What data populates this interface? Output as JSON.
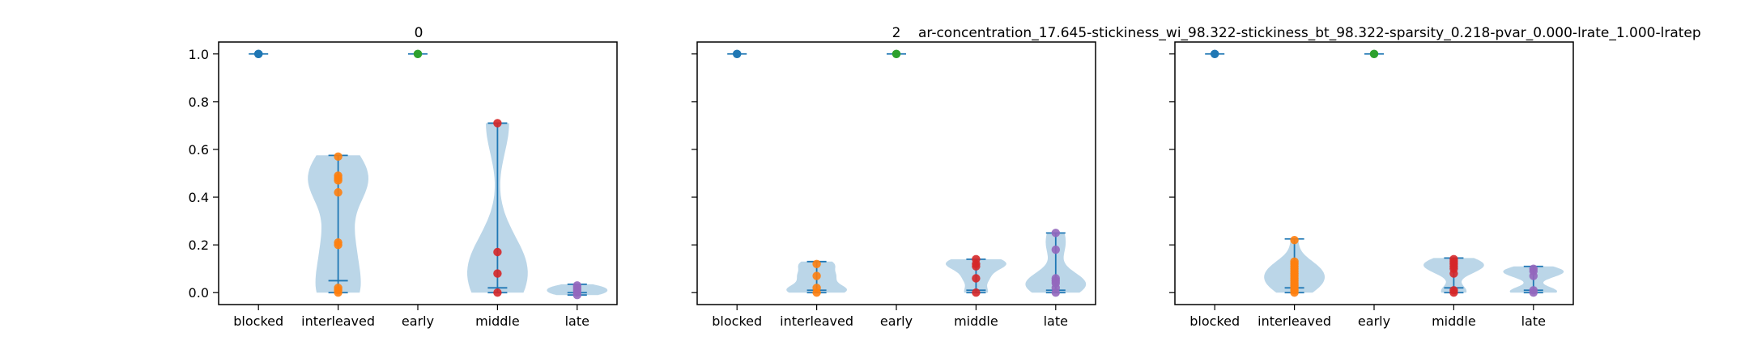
{
  "figure": {
    "title_left": "0",
    "title_center": "2",
    "suptitle": "ar-concentration_17.645-stickiness_wi_98.322-stickiness_bt_98.322-sparsity_0.218-pvar_0.000-lrate_1.000-lratep"
  },
  "colors": {
    "blocked": "#1f77b4",
    "interleaved": "#ff7f0e",
    "early": "#2ca02c",
    "middle": "#d62728",
    "late": "#9467bd",
    "violin_body": "#1f77b4",
    "violin_line": "#1f77b4"
  },
  "chart_data": [
    {
      "type": "violin",
      "title": "0",
      "categories": [
        "blocked",
        "interleaved",
        "early",
        "middle",
        "late"
      ],
      "ylim": [
        -0.05,
        1.05
      ],
      "yticks": [
        "0.0",
        "0.2",
        "0.4",
        "0.6",
        "0.8",
        "1.0"
      ],
      "grid": false,
      "series": [
        {
          "category": "blocked",
          "points": [
            1.0,
            1.0,
            1.0
          ],
          "range": [
            1.0,
            1.0
          ],
          "median": 1.0
        },
        {
          "category": "interleaved",
          "points": [
            0.57,
            0.49,
            0.48,
            0.47,
            0.42,
            0.21,
            0.2,
            0.02,
            0.01,
            0.0
          ],
          "range": [
            0.0,
            0.575
          ],
          "median": 0.05
        },
        {
          "category": "early",
          "points": [
            1.0,
            1.0
          ],
          "range": [
            1.0,
            1.0
          ],
          "median": 1.0
        },
        {
          "category": "middle",
          "points": [
            0.71,
            0.17,
            0.08,
            0.0
          ],
          "range": [
            0.0,
            0.71
          ],
          "median": 0.02
        },
        {
          "category": "late",
          "points": [
            0.03,
            0.02,
            0.01,
            0.0,
            -0.01
          ],
          "range": [
            -0.01,
            0.035
          ],
          "median": 0.0
        }
      ]
    },
    {
      "type": "violin",
      "title": "2",
      "categories": [
        "blocked",
        "interleaved",
        "early",
        "middle",
        "late"
      ],
      "ylim": [
        -0.05,
        1.05
      ],
      "yticks": [
        "0.0",
        "0.2",
        "0.4",
        "0.6",
        "0.8",
        "1.0"
      ],
      "grid": false,
      "series": [
        {
          "category": "blocked",
          "points": [
            1.0,
            1.0
          ],
          "range": [
            1.0,
            1.0
          ],
          "median": 1.0
        },
        {
          "category": "interleaved",
          "points": [
            0.12,
            0.07,
            0.02,
            0.0
          ],
          "range": [
            0.0,
            0.13
          ],
          "median": 0.01
        },
        {
          "category": "early",
          "points": [
            1.0,
            1.0
          ],
          "range": [
            1.0,
            1.0
          ],
          "median": 1.0
        },
        {
          "category": "middle",
          "points": [
            0.14,
            0.12,
            0.11,
            0.06,
            0.0
          ],
          "range": [
            0.0,
            0.14
          ],
          "median": 0.01
        },
        {
          "category": "late",
          "points": [
            0.25,
            0.18,
            0.06,
            0.05,
            0.04,
            0.02,
            0.0
          ],
          "range": [
            0.0,
            0.25
          ],
          "median": 0.01
        }
      ]
    },
    {
      "type": "violin",
      "title": "",
      "categories": [
        "blocked",
        "interleaved",
        "early",
        "middle",
        "late"
      ],
      "ylim": [
        -0.05,
        1.05
      ],
      "yticks": [
        "0.0",
        "0.2",
        "0.4",
        "0.6",
        "0.8",
        "1.0"
      ],
      "grid": false,
      "series": [
        {
          "category": "blocked",
          "points": [
            1.0,
            1.0
          ],
          "range": [
            1.0,
            1.0
          ],
          "median": 1.0
        },
        {
          "category": "interleaved",
          "points": [
            0.22,
            0.13,
            0.12,
            0.11,
            0.1,
            0.09,
            0.08,
            0.07,
            0.06,
            0.05,
            0.04,
            0.03,
            0.02,
            0.01,
            0.0
          ],
          "range": [
            0.0,
            0.225
          ],
          "median": 0.02
        },
        {
          "category": "early",
          "points": [
            1.0,
            1.0
          ],
          "range": [
            1.0,
            1.0
          ],
          "median": 1.0
        },
        {
          "category": "middle",
          "points": [
            0.14,
            0.13,
            0.12,
            0.11,
            0.1,
            0.08,
            0.01,
            0.0
          ],
          "range": [
            0.0,
            0.145
          ],
          "median": 0.02
        },
        {
          "category": "late",
          "points": [
            0.1,
            0.09,
            0.07,
            0.01,
            0.0
          ],
          "range": [
            0.0,
            0.11
          ],
          "median": 0.01
        }
      ]
    }
  ]
}
